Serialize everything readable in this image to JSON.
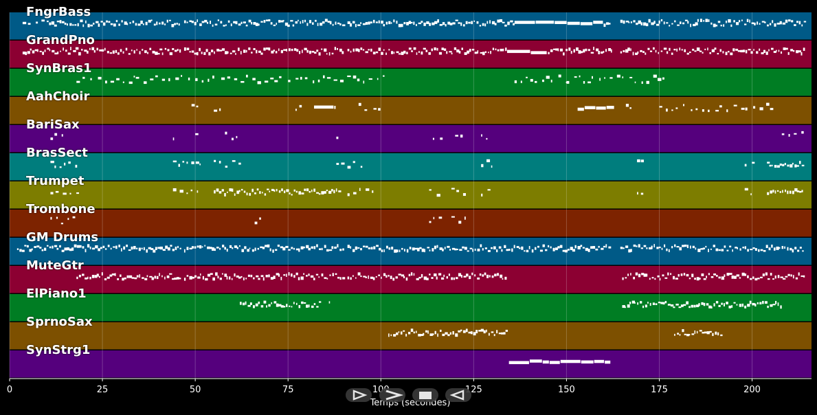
{
  "chart_data": {
    "type": "piano-roll",
    "xlabel": "Temps (secondes)",
    "xlim": [
      0,
      216
    ],
    "xticks": [
      0,
      25,
      50,
      75,
      100,
      125,
      150,
      175,
      200
    ],
    "grid": true,
    "tracks": [
      {
        "name": "FngrBass",
        "color": "#005a87",
        "segments": [
          [
            3.5,
            10,
            "sparse"
          ],
          [
            10,
            46,
            "dense"
          ],
          [
            47,
            90,
            "dense"
          ],
          [
            91,
            136,
            "dense"
          ],
          [
            136,
            160,
            "long"
          ],
          [
            160,
            162,
            "dense"
          ],
          [
            164.5,
            214,
            "dense"
          ]
        ]
      },
      {
        "name": "GrandPno",
        "color": "#8c0032",
        "segments": [
          [
            3.5,
            46,
            "dense"
          ],
          [
            47,
            90,
            "dense"
          ],
          [
            91,
            134,
            "dense"
          ],
          [
            134,
            145,
            "long"
          ],
          [
            145,
            162,
            "dense"
          ],
          [
            164.5,
            214,
            "dense"
          ]
        ]
      },
      {
        "name": "SynBras1",
        "color": "#007d23",
        "segments": [
          [
            18,
            34,
            "sparse"
          ],
          [
            34,
            56,
            "sparse"
          ],
          [
            57,
            73,
            "sparse"
          ],
          [
            75,
            98,
            "sparse"
          ],
          [
            99,
            102,
            "sparse"
          ],
          [
            136,
            150,
            "sparse"
          ],
          [
            150,
            164,
            "sparse"
          ],
          [
            165,
            176,
            "sparse"
          ]
        ]
      },
      {
        "name": "AahChoir",
        "color": "#7d5000",
        "segments": [
          [
            49,
            51,
            "sparse"
          ],
          [
            55,
            57,
            "sparse"
          ],
          [
            77,
            79,
            "sparse"
          ],
          [
            82,
            88,
            "long"
          ],
          [
            94,
            96,
            "sparse"
          ],
          [
            98,
            100,
            "sparse"
          ],
          [
            153,
            163,
            "long"
          ],
          [
            166,
            168,
            "sparse"
          ],
          [
            175,
            206,
            "sparse"
          ]
        ]
      },
      {
        "name": "BariSax",
        "color": "#55007d",
        "segments": [
          [
            11,
            15,
            "sparse"
          ],
          [
            44,
            45,
            "sparse"
          ],
          [
            50,
            51,
            "sparse"
          ],
          [
            58,
            61,
            "sparse"
          ],
          [
            88,
            89,
            "sparse"
          ],
          [
            114,
            117,
            "sparse"
          ],
          [
            120,
            123,
            "sparse"
          ],
          [
            127,
            130,
            "sparse"
          ],
          [
            208,
            214,
            "sparse"
          ]
        ]
      },
      {
        "name": "BrasSect",
        "color": "#007d7d",
        "segments": [
          [
            11,
            18,
            "sparse"
          ],
          [
            44,
            52,
            "sparse"
          ],
          [
            55,
            62,
            "sparse"
          ],
          [
            88,
            96,
            "sparse"
          ],
          [
            127,
            130,
            "sparse"
          ],
          [
            169,
            171,
            "sparse"
          ],
          [
            198,
            200,
            "sparse"
          ],
          [
            204,
            214,
            "dense"
          ]
        ]
      },
      {
        "name": "Trumpet",
        "color": "#7d7d00",
        "segments": [
          [
            11,
            18,
            "sparse"
          ],
          [
            44,
            52,
            "sparse"
          ],
          [
            55,
            89,
            "dense"
          ],
          [
            91,
            99,
            "sparse"
          ],
          [
            113,
            116,
            "sparse"
          ],
          [
            119,
            123,
            "sparse"
          ],
          [
            127,
            130,
            "sparse"
          ],
          [
            169,
            171,
            "sparse"
          ],
          [
            198,
            200,
            "sparse"
          ],
          [
            204,
            214,
            "dense"
          ]
        ]
      },
      {
        "name": "Trombone",
        "color": "#7d2300",
        "segments": [
          [
            11,
            18,
            "sparse"
          ],
          [
            66,
            68,
            "sparse"
          ],
          [
            113,
            116,
            "sparse"
          ],
          [
            119,
            123,
            "sparse"
          ]
        ]
      },
      {
        "name": "GM Drums",
        "color": "#005a87",
        "segments": [
          [
            2,
            46,
            "dense"
          ],
          [
            47,
            90,
            "dense"
          ],
          [
            91,
            162,
            "dense"
          ],
          [
            164.5,
            214,
            "dense"
          ]
        ]
      },
      {
        "name": "MuteGtr",
        "color": "#8c0032",
        "segments": [
          [
            18,
            46,
            "dense"
          ],
          [
            47,
            90,
            "dense"
          ],
          [
            91,
            134,
            "dense"
          ],
          [
            165,
            214,
            "dense"
          ]
        ]
      },
      {
        "name": "ElPiano1",
        "color": "#007d23",
        "segments": [
          [
            62,
            84,
            "dense"
          ],
          [
            86,
            87,
            "sparse"
          ],
          [
            165,
            208,
            "dense"
          ]
        ]
      },
      {
        "name": "SprnoSax",
        "color": "#7d5000",
        "segments": [
          [
            102,
            134,
            "dense"
          ],
          [
            179,
            192,
            "dense"
          ]
        ]
      },
      {
        "name": "SynStrg1",
        "color": "#55007d",
        "segments": [
          [
            134.5,
            162,
            "long"
          ]
        ]
      }
    ]
  },
  "controls": {
    "buttons": [
      {
        "name": "play-button",
        "icon": "play-icon"
      },
      {
        "name": "fast-forward-button",
        "icon": "fast-forward-icon"
      },
      {
        "name": "stop-button",
        "icon": "stop-icon"
      },
      {
        "name": "rewind-button",
        "icon": "rewind-icon"
      }
    ]
  }
}
